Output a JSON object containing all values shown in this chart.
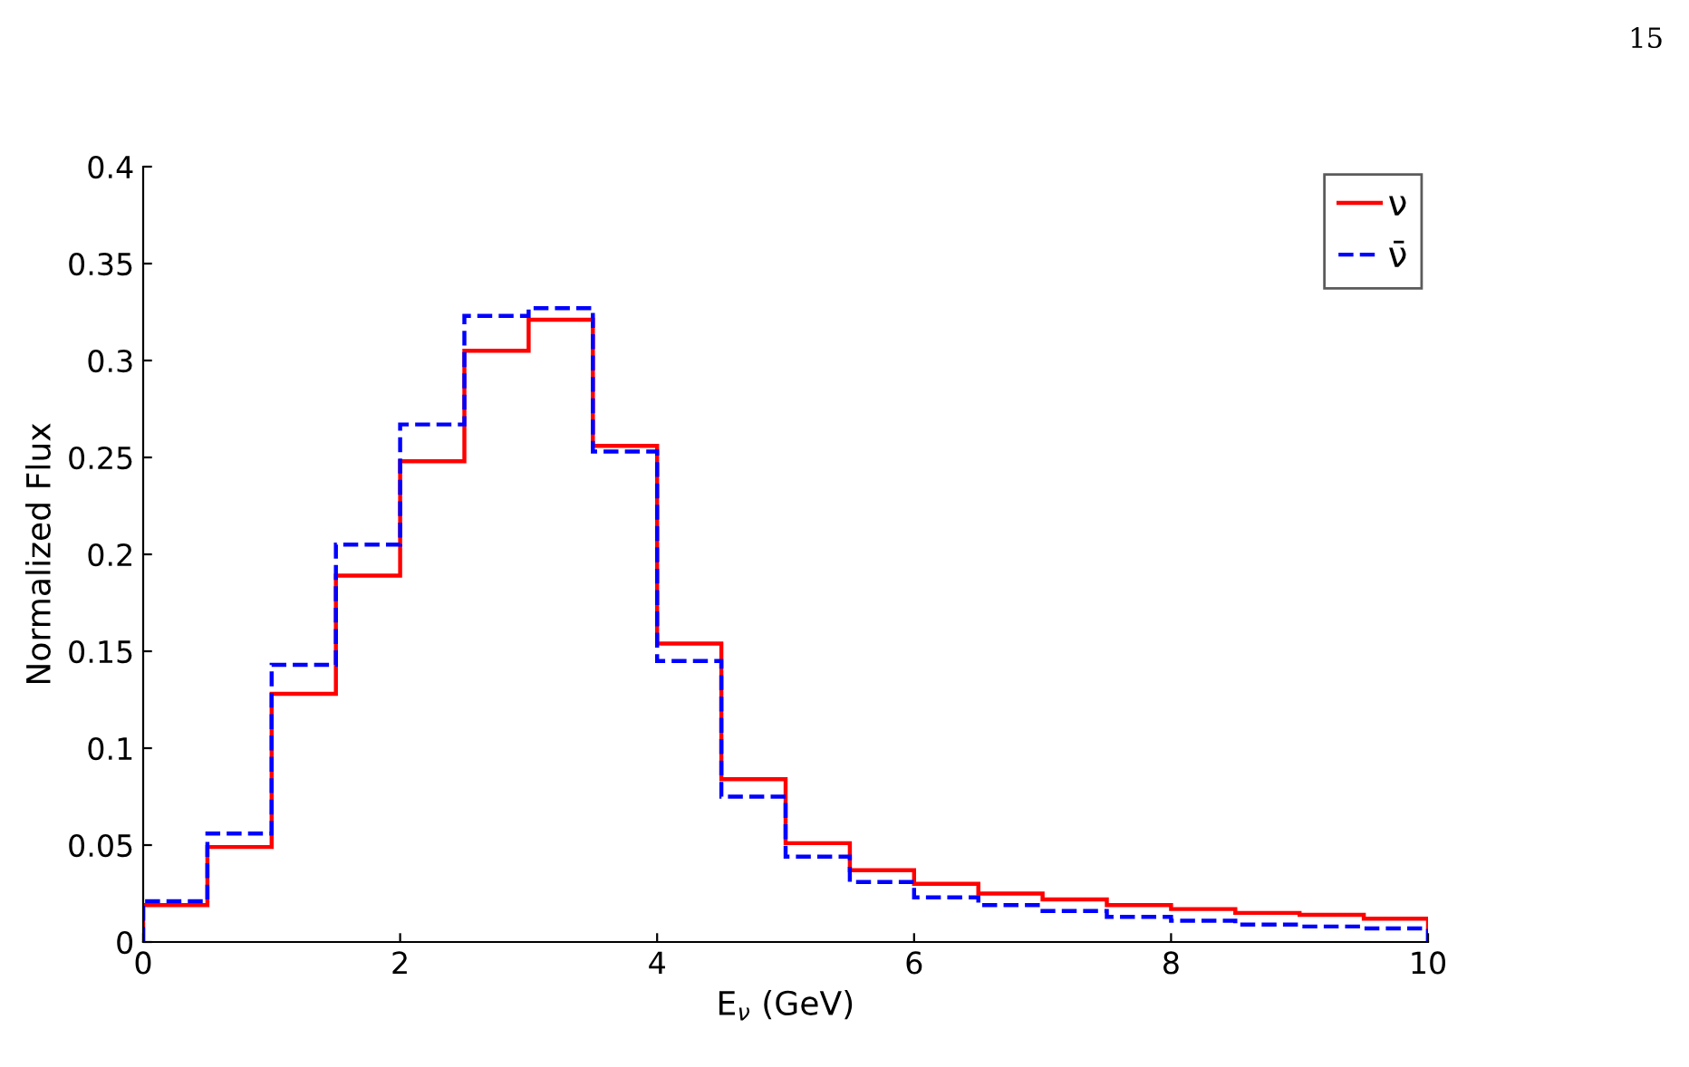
{
  "chart_data": {
    "type": "histogram",
    "xlabel": "E$_{ν}$ (GeV)",
    "ylabel": "Normalized Flux",
    "bins": [
      0,
      0.5,
      1,
      1.5,
      2,
      2.5,
      3,
      3.5,
      4,
      4.5,
      5,
      5.5,
      6,
      6.5,
      7,
      7.5,
      8,
      8.5,
      9,
      9.5,
      10
    ],
    "series": [
      {
        "name": "ν",
        "color": "#ff0000",
        "line_style": "solid",
        "values": [
          0.019,
          0.049,
          0.128,
          0.189,
          0.248,
          0.305,
          0.321,
          0.256,
          0.154,
          0.084,
          0.051,
          0.037,
          0.03,
          0.025,
          0.022,
          0.019,
          0.017,
          0.015,
          0.014,
          0.012
        ]
      },
      {
        "name": "ν̄",
        "color": "#0000ff",
        "line_style": "dashed",
        "values": [
          0.021,
          0.056,
          0.143,
          0.205,
          0.267,
          0.323,
          0.327,
          0.253,
          0.145,
          0.075,
          0.044,
          0.031,
          0.023,
          0.019,
          0.016,
          0.013,
          0.011,
          0.009,
          0.008,
          0.007
        ]
      }
    ],
    "xlim": [
      0,
      10
    ],
    "xticks": [
      0,
      2,
      4,
      6,
      8,
      10
    ],
    "ylim": [
      0,
      0.4
    ],
    "yticks": [
      0,
      0.05,
      0.1,
      0.15,
      0.2,
      0.25,
      0.3,
      0.35,
      0.4
    ],
    "legend": "top right",
    "grid": false,
    "annotations": [
      "15"
    ]
  }
}
